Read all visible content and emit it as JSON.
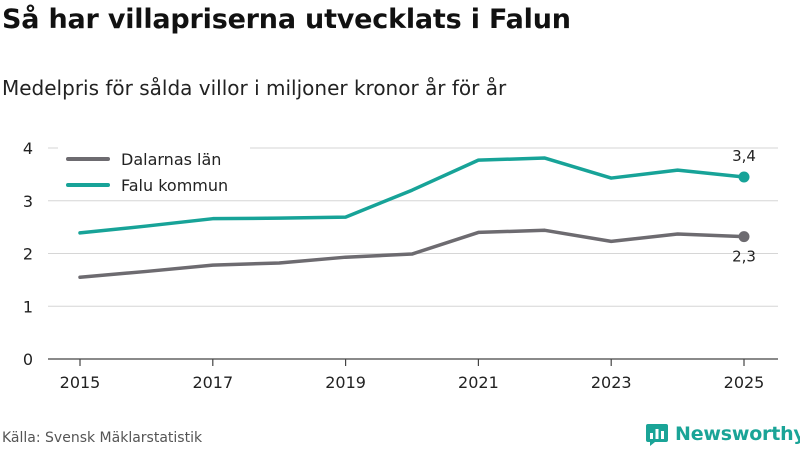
{
  "header": {
    "title": "Så har villapriserna utvecklats i Falun",
    "subtitle": "Medelpris för sålda villor i miljoner kronor år för år"
  },
  "footer": {
    "source": "Källa: Svensk Mäklarstatistik",
    "brand": "Newsworthy",
    "brand_icon": "newsworthy-logo-icon"
  },
  "colors": {
    "dalarna": "#6d6b70",
    "falun": "#17a398",
    "grid": "#d6d6d6",
    "axis": "#444444"
  },
  "chart_data": {
    "type": "line",
    "title": "Så har villapriserna utvecklats i Falun",
    "subtitle": "Medelpris för sålda villor i miljoner kronor år för år",
    "xlabel": "",
    "ylabel": "",
    "x": [
      2015,
      2016,
      2017,
      2018,
      2019,
      2020,
      2021,
      2022,
      2023,
      2024,
      2025
    ],
    "x_ticks": [
      "2015",
      "2017",
      "2019",
      "2021",
      "2023",
      "2025"
    ],
    "y_ticks": [
      "0",
      "1",
      "2",
      "3",
      "4"
    ],
    "xlim": [
      2015,
      2025
    ],
    "ylim": [
      0,
      4
    ],
    "grid": true,
    "legend_position": "top-left",
    "series": [
      {
        "name": "Dalarnas län",
        "color": "#6d6b70",
        "values": [
          1.55,
          1.66,
          1.78,
          1.82,
          1.93,
          1.99,
          2.4,
          2.44,
          2.23,
          2.37,
          2.32
        ],
        "end_label": "2,3"
      },
      {
        "name": "Falu kommun",
        "color": "#17a398",
        "values": [
          2.39,
          2.52,
          2.66,
          2.67,
          2.69,
          3.2,
          3.77,
          3.81,
          3.43,
          3.58,
          3.45
        ],
        "end_label": "3,4"
      }
    ]
  }
}
